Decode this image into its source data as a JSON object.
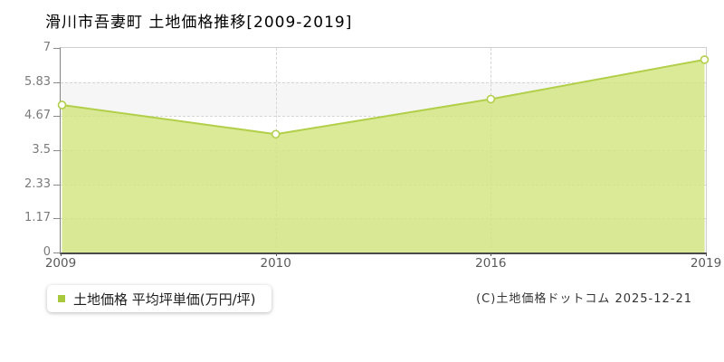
{
  "title": "滑川市吾妻町 土地価格推移[2009-2019]",
  "legend": {
    "label": "土地価格 平均坪単価(万円/坪)",
    "marker_color": "#a9c93c"
  },
  "copyright": "(C)土地価格ドットコム 2025-12-21",
  "chart_data": {
    "type": "area",
    "title": "滑川市吾妻町 土地価格推移[2009-2019]",
    "categories": [
      "2009",
      "2010",
      "2016",
      "2019"
    ],
    "series": [
      {
        "name": "土地価格 平均坪単価(万円/坪)",
        "values": [
          5.05,
          4.05,
          5.25,
          6.6
        ]
      }
    ],
    "xlabel": "",
    "ylabel": "",
    "ylim": [
      0,
      7
    ],
    "y_ticks": [
      0,
      1.17,
      2.33,
      3.5,
      4.67,
      5.83,
      7
    ],
    "y_tick_labels": [
      "0",
      "1.17",
      "2.33",
      "3.5",
      "4.67",
      "5.83",
      "7"
    ],
    "x_spacing": "equal",
    "grid": true,
    "legend_position": "bottom-left",
    "colors": {
      "area_fill": "#d2e57d",
      "area_opacity": 0.8,
      "line": "#b2cf4a",
      "marker_fill": "#ffffff",
      "marker_stroke": "#b2cf4a",
      "gridline": "#d6d6d6",
      "band": "#f6f6f6",
      "axis": "#4a4a4a"
    }
  }
}
